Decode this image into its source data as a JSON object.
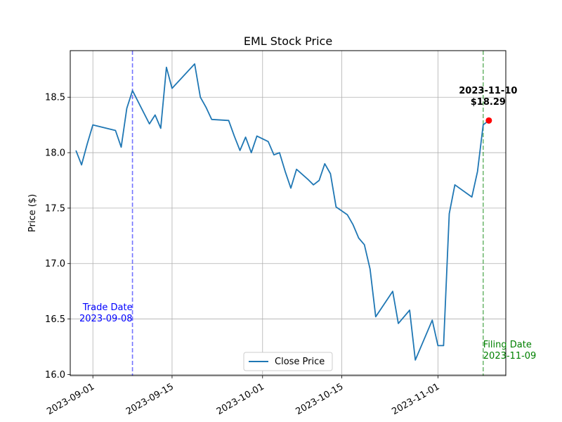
{
  "chart_data": {
    "type": "line",
    "title": "EML Stock Price",
    "ylabel": "Price ($)",
    "xlabel": "",
    "xlim": [
      "2023-08-28",
      "2023-11-13"
    ],
    "ylim": [
      15.99,
      18.92
    ],
    "grid": true,
    "x_ticks": [
      "2023-09-01",
      "2023-09-15",
      "2023-10-01",
      "2023-10-15",
      "2023-11-01"
    ],
    "y_ticks": [
      16.0,
      16.5,
      17.0,
      17.5,
      18.0,
      18.5
    ],
    "y_tick_labels": [
      "16.0",
      "16.5",
      "17.0",
      "17.5",
      "18.0",
      "18.5"
    ],
    "legend": {
      "position": "lower-center",
      "entries": [
        "Close Price"
      ]
    },
    "series": [
      {
        "name": "Close Price",
        "color": "#1f77b4",
        "points": [
          [
            "2023-08-29",
            18.02
          ],
          [
            "2023-08-30",
            17.89
          ],
          [
            "2023-08-31",
            18.08
          ],
          [
            "2023-09-01",
            18.25
          ],
          [
            "2023-09-05",
            18.2
          ],
          [
            "2023-09-06",
            18.05
          ],
          [
            "2023-09-07",
            18.4
          ],
          [
            "2023-09-08",
            18.56
          ],
          [
            "2023-09-11",
            18.26
          ],
          [
            "2023-09-12",
            18.34
          ],
          [
            "2023-09-13",
            18.22
          ],
          [
            "2023-09-14",
            18.77
          ],
          [
            "2023-09-15",
            18.58
          ],
          [
            "2023-09-19",
            18.8
          ],
          [
            "2023-09-20",
            18.5
          ],
          [
            "2023-09-21",
            18.41
          ],
          [
            "2023-09-22",
            18.3
          ],
          [
            "2023-09-25",
            18.29
          ],
          [
            "2023-09-26",
            18.15
          ],
          [
            "2023-09-27",
            18.02
          ],
          [
            "2023-09-28",
            18.14
          ],
          [
            "2023-09-29",
            18.0
          ],
          [
            "2023-09-30",
            18.15
          ],
          [
            "2023-10-02",
            18.1
          ],
          [
            "2023-10-03",
            17.98
          ],
          [
            "2023-10-04",
            18.0
          ],
          [
            "2023-10-05",
            17.83
          ],
          [
            "2023-10-06",
            17.68
          ],
          [
            "2023-10-07",
            17.85
          ],
          [
            "2023-10-09",
            17.76
          ],
          [
            "2023-10-10",
            17.71
          ],
          [
            "2023-10-11",
            17.75
          ],
          [
            "2023-10-12",
            17.9
          ],
          [
            "2023-10-13",
            17.81
          ],
          [
            "2023-10-14",
            17.51
          ],
          [
            "2023-10-16",
            17.44
          ],
          [
            "2023-10-17",
            17.35
          ],
          [
            "2023-10-18",
            17.23
          ],
          [
            "2023-10-19",
            17.17
          ],
          [
            "2023-10-20",
            16.95
          ],
          [
            "2023-10-21",
            16.52
          ],
          [
            "2023-10-24",
            16.75
          ],
          [
            "2023-10-25",
            16.46
          ],
          [
            "2023-10-27",
            16.58
          ],
          [
            "2023-10-28",
            16.13
          ],
          [
            "2023-10-31",
            16.49
          ],
          [
            "2023-11-01",
            16.26
          ],
          [
            "2023-11-02",
            16.26
          ],
          [
            "2023-11-03",
            17.45
          ],
          [
            "2023-11-04",
            17.71
          ],
          [
            "2023-11-07",
            17.6
          ],
          [
            "2023-11-08",
            17.83
          ],
          [
            "2023-11-09",
            18.25
          ],
          [
            "2023-11-10",
            18.29
          ]
        ]
      }
    ],
    "annotations": {
      "trade_date": {
        "date": "2023-09-08",
        "label_line1": "Trade Date",
        "label_line2": "2023-09-08",
        "color": "#0000ff"
      },
      "filing_date": {
        "date": "2023-11-09",
        "label_line1": "Filing Date",
        "label_line2": "2023-11-09",
        "color": "#008000"
      },
      "last_point": {
        "date": "2023-11-10",
        "value": 18.29,
        "label_line1": "2023-11-10",
        "label_line2": "$18.29",
        "color": "#ff0000"
      }
    }
  }
}
